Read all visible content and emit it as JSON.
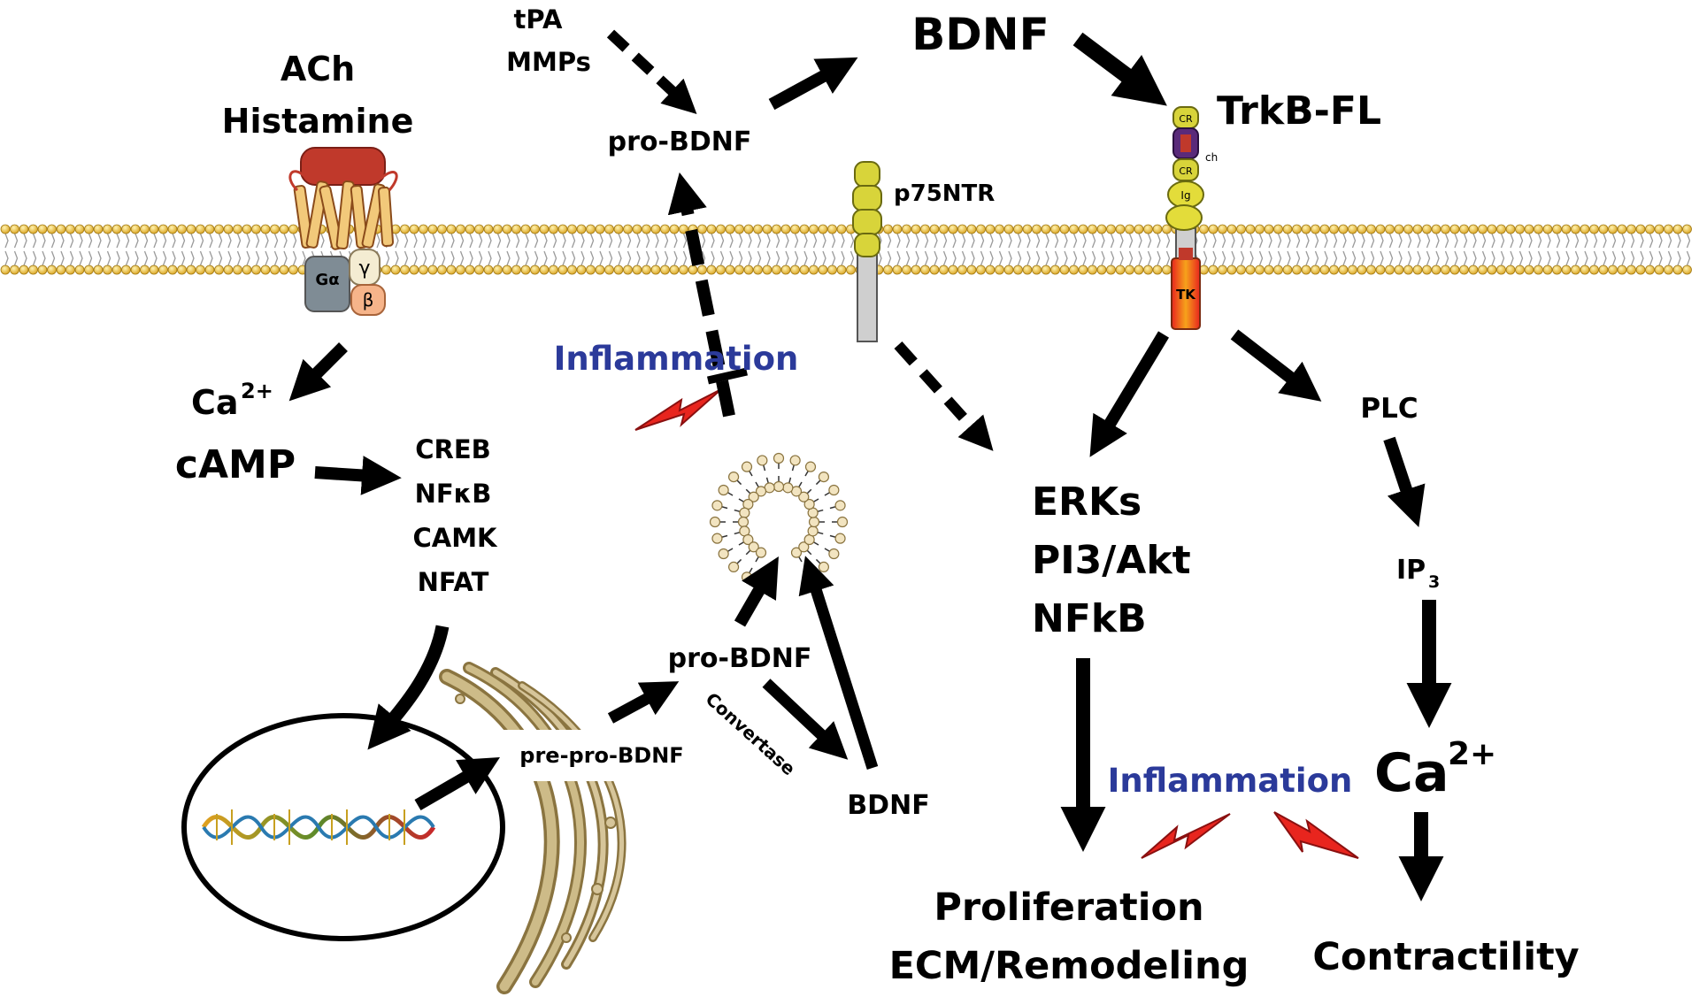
{
  "labels": {
    "ach": "ACh",
    "histamine": "Histamine",
    "tpa": "tPA",
    "mmps": "MMPs",
    "pro_bdnf_top": "pro-BDNF",
    "bdnf_top": "BDNF",
    "trkb_fl": "TrkB-FL",
    "p75ntr": "p75NTR",
    "inflammation_left": "Inflammation",
    "ca_left": "Ca",
    "ca_left_sup": "2+",
    "camp": "cAMP",
    "creb": "CREB",
    "nfkb_left": "NFκB",
    "camk": "CAMK",
    "nfat": "NFAT",
    "plc": "PLC",
    "ip3": "IP",
    "ip3_sub": "3",
    "erks": "ERKs",
    "pi3akt": "PI3/Akt",
    "nfkb_right": "NFkB",
    "pro_bdnf_mid": "pro-BDNF",
    "convertase": "Convertase",
    "pre_pro_bdnf": "pre-pro-BDNF",
    "bdnf_bottom": "BDNF",
    "inflammation_right": "Inflammation",
    "ca_right": "Ca",
    "ca_right_sup": "2+",
    "proliferation": "Proliferation",
    "ecm": "ECM/Remodeling",
    "contractility": "Contractility"
  },
  "receptor_labels": {
    "galpha": "Gα",
    "gamma": "γ",
    "beta": "β",
    "trk_domain_1": "CR",
    "trk_domain_2": "CR",
    "trk_domain_3": "Ig",
    "trk_kinase": "TK",
    "trk_ch": "ch"
  },
  "colors": {
    "inflammation_text": "#2b3a9a",
    "lightning": "#e8251e",
    "membrane_head": "#e9b62a",
    "golgi": "#b8a46c",
    "p75_yellow": "#d8d43a"
  }
}
